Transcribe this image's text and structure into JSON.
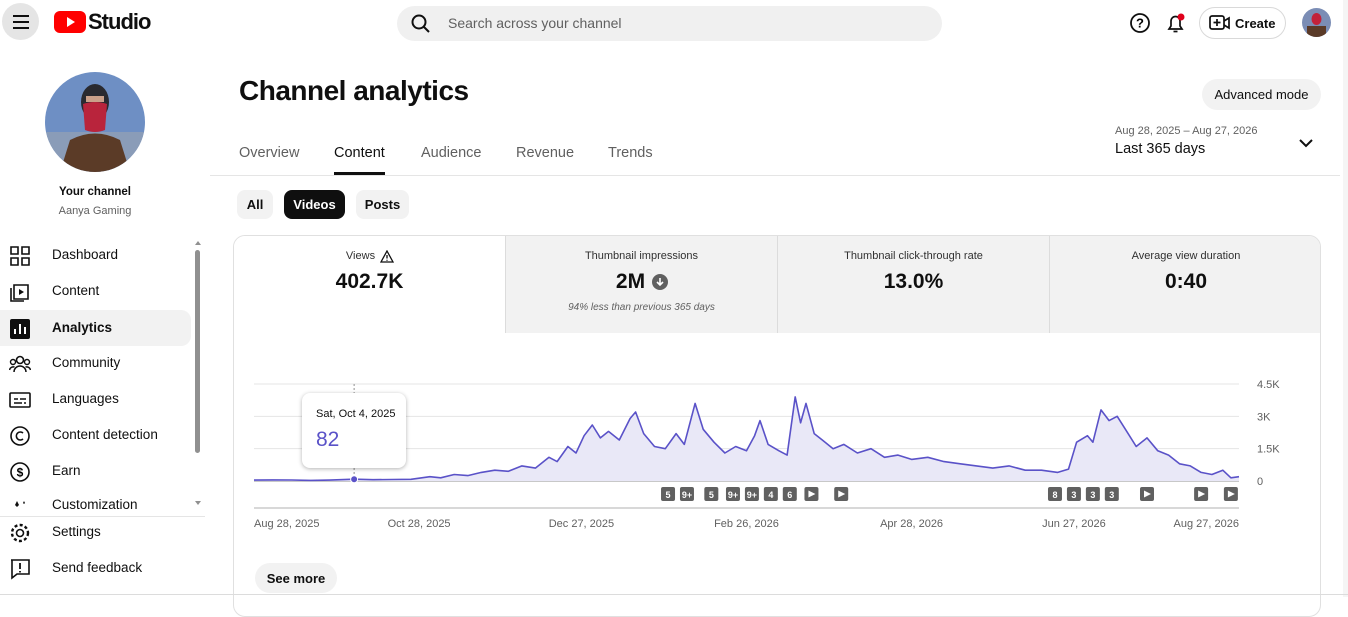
{
  "header": {
    "logo": "Studio",
    "search_placeholder": "Search across your channel",
    "create": "Create"
  },
  "sidebar": {
    "channel_label": "Your channel",
    "channel_name": "Aanya Gaming",
    "nav": [
      "Dashboard",
      "Content",
      "Analytics",
      "Community",
      "Languages",
      "Content detection",
      "Earn",
      "Customization"
    ],
    "footer_nav": [
      "Settings",
      "Send feedback"
    ]
  },
  "page": {
    "title": "Channel analytics",
    "advanced_mode": "Advanced mode",
    "tabs": [
      "Overview",
      "Content",
      "Audience",
      "Revenue",
      "Trends"
    ],
    "date_range": "Aug 28, 2025 – Aug 27, 2026",
    "period": "Last 365 days",
    "filters": [
      "All",
      "Videos",
      "Posts"
    ],
    "metrics": [
      {
        "label": "Views",
        "value": "402.7K"
      },
      {
        "label": "Thumbnail impressions",
        "value": "2M",
        "note": "94% less than previous 365 days"
      },
      {
        "label": "Thumbnail click-through rate",
        "value": "13.0%"
      },
      {
        "label": "Average view duration",
        "value": "0:40"
      }
    ],
    "see_more": "See more"
  },
  "chart_data": {
    "type": "line",
    "color": "#5a52c8",
    "fill": "#e9e8f7",
    "x": [
      "Aug 28, 2025",
      "Sep 4, 2025",
      "Sep 11, 2025",
      "Sep 18, 2025",
      "Sep 25, 2025",
      "Oct 4, 2025",
      "Oct 11, 2025",
      "Oct 18, 2025",
      "Oct 25, 2025",
      "Nov 1, 2025",
      "Nov 5, 2025",
      "Nov 10, 2025",
      "Nov 15, 2025",
      "Nov 20, 2025",
      "Nov 25, 2025",
      "Nov 30, 2025",
      "Dec 5, 2025",
      "Dec 10, 2025",
      "Dec 15, 2025",
      "Dec 18, 2025",
      "Dec 22, 2025",
      "Dec 25, 2025",
      "Dec 28, 2025",
      "Dec 31, 2025",
      "Jan 3, 2026",
      "Jan 6, 2026",
      "Jan 10, 2026",
      "Jan 14, 2026",
      "Jan 16, 2026",
      "Jan 19, 2026",
      "Jan 23, 2026",
      "Jan 27, 2026",
      "Jan 31, 2026",
      "Feb 3, 2026",
      "Feb 7, 2026",
      "Feb 10, 2026",
      "Feb 14, 2026",
      "Feb 18, 2026",
      "Feb 22, 2026",
      "Feb 26, 2026",
      "Mar 1, 2026",
      "Mar 3, 2026",
      "Mar 6, 2026",
      "Mar 10, 2026",
      "Mar 13, 2026",
      "Mar 16, 2026",
      "Mar 18, 2026",
      "Mar 20, 2026",
      "Mar 23, 2026",
      "Mar 26, 2026",
      "Mar 30, 2026",
      "Apr 3, 2026",
      "Apr 8, 2026",
      "Apr 13, 2026",
      "Apr 18, 2026",
      "Apr 23, 2026",
      "Apr 28, 2026",
      "May 4, 2026",
      "May 10, 2026",
      "May 16, 2026",
      "May 22, 2026",
      "May 28, 2026",
      "Jun 3, 2026",
      "Jun 9, 2026",
      "Jun 15, 2026",
      "Jun 21, 2026",
      "Jun 25, 2026",
      "Jun 28, 2026",
      "Jul 2, 2026",
      "Jul 4, 2026",
      "Jul 7, 2026",
      "Jul 10, 2026",
      "Jul 13, 2026",
      "Jul 17, 2026",
      "Jul 20, 2026",
      "Jul 24, 2026",
      "Jul 28, 2026",
      "Aug 1, 2026",
      "Aug 5, 2026",
      "Aug 9, 2026",
      "Aug 13, 2026",
      "Aug 17, 2026",
      "Aug 21, 2026",
      "Aug 24, 2026",
      "Aug 27, 2026"
    ],
    "values": [
      40,
      50,
      45,
      30,
      40,
      82,
      60,
      70,
      80,
      200,
      150,
      300,
      250,
      400,
      500,
      450,
      700,
      600,
      1100,
      900,
      1600,
      1300,
      2100,
      2600,
      2000,
      2300,
      1900,
      2900,
      3200,
      2200,
      1600,
      1500,
      2200,
      1700,
      3600,
      2400,
      1800,
      1300,
      1600,
      1400,
      2100,
      2800,
      1700,
      1400,
      1200,
      3900,
      2700,
      3600,
      2200,
      1900,
      1500,
      1700,
      1300,
      1500,
      1100,
      1200,
      1000,
      1100,
      900,
      800,
      700,
      600,
      700,
      500,
      500,
      400,
      550,
      1800,
      2100,
      1800,
      3300,
      2800,
      3000,
      2200,
      1600,
      2000,
      1400,
      1200,
      800,
      700,
      400,
      300,
      500,
      150,
      200
    ],
    "xlim": [
      "Aug 28, 2025",
      "Aug 27, 2026"
    ],
    "xticks": [
      "Aug 28, 2025",
      "Oct 28, 2025",
      "Dec 27, 2025",
      "Feb 26, 2026",
      "Apr 28, 2026",
      "Jun 27, 2026",
      "Aug 27, 2026"
    ],
    "ylim": [
      0,
      4500
    ],
    "yticks": [
      0,
      {
        "value": 1500,
        "label": "1.5K"
      },
      {
        "value": 3000,
        "label": "3K"
      },
      {
        "value": 4500,
        "label": "4.5K"
      }
    ],
    "grid": true,
    "tooltip": {
      "label": "Sat, Oct 4, 2025",
      "value": 82
    },
    "markers": [
      {
        "x": "Jan 28, 2026",
        "label": "5"
      },
      {
        "x": "Feb 4, 2026",
        "label": "9+"
      },
      {
        "x": "Feb 13, 2026",
        "label": "5"
      },
      {
        "x": "Feb 21, 2026",
        "label": "9+"
      },
      {
        "x": "Feb 28, 2026",
        "label": "9+"
      },
      {
        "x": "Mar 7, 2026",
        "label": "4"
      },
      {
        "x": "Mar 14, 2026",
        "label": "6"
      },
      {
        "x": "Jun 20, 2026",
        "label": "8"
      },
      {
        "x": "Jun 27, 2026",
        "label": "3"
      },
      {
        "x": "Jul 4, 2026",
        "label": "3"
      },
      {
        "x": "Jul 11, 2026",
        "label": "3"
      }
    ],
    "video_markers": [
      "Mar 22, 2026",
      "Apr 2, 2026",
      "Jul 24, 2026",
      "Aug 13, 2026",
      "Aug 24, 2026"
    ]
  }
}
